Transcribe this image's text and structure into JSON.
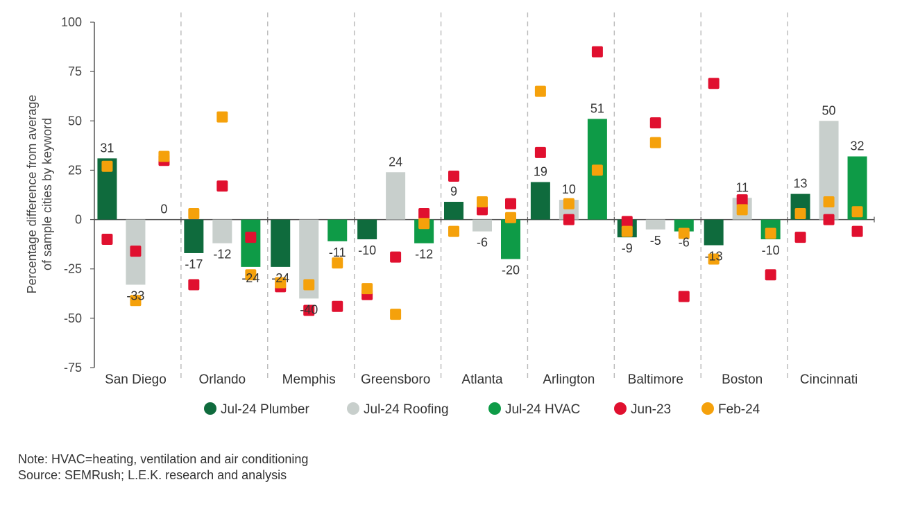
{
  "chart_data": {
    "type": "bar",
    "ylabel": "Percentage difference from average of sample cities by keyword",
    "ylabel_lines": [
      "Percentage difference from average",
      "of sample cities by keyword"
    ],
    "ylim": [
      -75,
      100
    ],
    "yticks": [
      100,
      75,
      50,
      25,
      0,
      -25,
      -50,
      -75
    ],
    "categories": [
      "San Diego",
      "Orlando",
      "Memphis",
      "Greensboro",
      "Atlanta",
      "Arlington",
      "Baltimore",
      "Boston",
      "Cincinnati"
    ],
    "series": [
      {
        "name": "Jul-24 Plumber",
        "kind": "bar",
        "color": "#0f6b3d",
        "values": [
          31,
          -17,
          -24,
          -10,
          9,
          19,
          -9,
          -13,
          13
        ]
      },
      {
        "name": "Jul-24 Roofing",
        "kind": "bar",
        "color": "#c8cfcc",
        "values": [
          -33,
          -12,
          -40,
          24,
          -6,
          10,
          -5,
          11,
          50
        ]
      },
      {
        "name": "Jul-24 HVAC",
        "kind": "bar",
        "color": "#0e9b47",
        "values": [
          0,
          -24,
          -11,
          -12,
          -20,
          51,
          -6,
          -10,
          32
        ]
      },
      {
        "name": "Jun-23",
        "kind": "marker",
        "color": "#e0102f",
        "values": [
          [
            -10,
            -16,
            30
          ],
          [
            -33,
            17,
            -9
          ],
          [
            -34,
            -46,
            -44
          ],
          [
            -38,
            -19,
            3
          ],
          [
            22,
            5,
            8
          ],
          [
            34,
            0,
            85
          ],
          [
            -1,
            49,
            -39
          ],
          [
            69,
            10,
            -28
          ],
          [
            -9,
            0,
            -6
          ]
        ]
      },
      {
        "name": "Feb-24",
        "kind": "marker",
        "color": "#f5a10b",
        "values": [
          [
            27,
            -41,
            32
          ],
          [
            3,
            52,
            -28
          ],
          [
            -32,
            -33,
            -22
          ],
          [
            -35,
            -48,
            -2
          ],
          [
            -6,
            9,
            1
          ],
          [
            65,
            8,
            25
          ],
          [
            -6,
            39,
            -7
          ],
          [
            -20,
            5,
            -7
          ],
          [
            3,
            9,
            4
          ]
        ]
      }
    ],
    "legend_position": "bottom",
    "grid": "vertical dashed separators"
  },
  "notes": {
    "note": "Note: HVAC=heating, ventilation and air conditioning",
    "source": "Source: SEMRush; L.E.K. research and analysis"
  }
}
